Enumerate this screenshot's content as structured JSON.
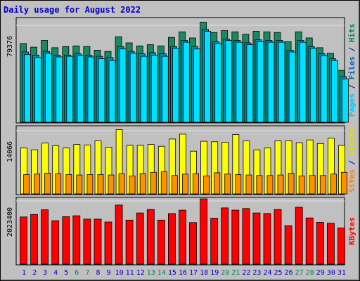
{
  "title": "Daily usage for August 2022",
  "chart_data": [
    {
      "type": "bar",
      "panel": "top",
      "ylim": [
        0,
        79376
      ],
      "y_tick_label": "79376",
      "right_labels": [
        {
          "text": "Pages",
          "color": "#00c8ff"
        },
        {
          "text": " / ",
          "color": "#0000cc"
        },
        {
          "text": "Files",
          "color": "#0060c0"
        },
        {
          "text": " / ",
          "color": "#0000cc"
        },
        {
          "text": "Hits",
          "color": "#00805c"
        }
      ],
      "series": [
        {
          "name": "Hits",
          "color": "#1a8a5e",
          "values": [
            64500,
            61500,
            67000,
            61000,
            62000,
            62500,
            62000,
            59000,
            58000,
            70000,
            65000,
            62500,
            63500,
            62500,
            69500,
            74000,
            69000,
            82000,
            73500,
            75000,
            74000,
            72000,
            74500,
            74000,
            73500,
            66000,
            74000,
            69000,
            61000,
            56500,
            42500
          ]
        },
        {
          "name": "Files",
          "color": "#0090c0",
          "values": [
            57500,
            55000,
            58000,
            55000,
            55000,
            56000,
            55000,
            54000,
            53000,
            62000,
            58000,
            56000,
            57000,
            56000,
            62000,
            67000,
            62000,
            76000,
            66000,
            68000,
            67000,
            65000,
            67500,
            67000,
            67000,
            59000,
            67000,
            62000,
            56000,
            52000,
            37500
          ]
        },
        {
          "name": "Pages",
          "color": "#00e0ff",
          "values": [
            55500,
            53000,
            56500,
            53500,
            54000,
            54500,
            53500,
            52000,
            50500,
            60000,
            56500,
            54000,
            55000,
            54000,
            60500,
            65500,
            60000,
            74500,
            64500,
            67000,
            65500,
            63500,
            66000,
            65500,
            65500,
            57500,
            65500,
            60500,
            54500,
            50500,
            35500
          ]
        }
      ]
    },
    {
      "type": "bar",
      "panel": "middle",
      "ylim": [
        0,
        14066
      ],
      "y_tick_label": "14066",
      "right_labels": [
        {
          "text": "Sites",
          "color": "#ff8000"
        },
        {
          "text": " / ",
          "color": "#0000cc"
        },
        {
          "text": "Visits",
          "color": "#e0e000"
        }
      ],
      "series": [
        {
          "name": "Visits",
          "color": "#ffff00",
          "values": [
            10200,
            9800,
            11300,
            10700,
            10200,
            11000,
            10900,
            11800,
            10400,
            14300,
            10800,
            10800,
            11000,
            10600,
            12200,
            13300,
            9500,
            11700,
            11600,
            11500,
            13200,
            11800,
            9800,
            10200,
            11800,
            11800,
            11400,
            12000,
            11200,
            12400,
            10800
          ]
        },
        {
          "name": "Sites",
          "color": "#ff9000",
          "values": [
            4300,
            4400,
            4600,
            4500,
            4300,
            4200,
            4300,
            4300,
            4200,
            4500,
            4000,
            4500,
            4800,
            4900,
            4100,
            4400,
            4500,
            4000,
            4700,
            4400,
            4300,
            4200,
            4100,
            4100,
            4200,
            4600,
            4000,
            4100,
            4100,
            4400,
            4800
          ]
        }
      ]
    },
    {
      "type": "bar",
      "panel": "bottom",
      "ylim": [
        0,
        2023400
      ],
      "y_tick_label": "2023400",
      "right_labels": [
        {
          "text": "KBytes",
          "color": "#ff0000"
        }
      ],
      "series": [
        {
          "name": "KBytes",
          "color": "#ff0000",
          "values": [
            1510000,
            1590000,
            1740000,
            1390000,
            1520000,
            1550000,
            1440000,
            1440000,
            1350000,
            1890000,
            1410000,
            1640000,
            1750000,
            1410000,
            1620000,
            1730000,
            1330000,
            2090000,
            1470000,
            1800000,
            1730000,
            1780000,
            1640000,
            1620000,
            1750000,
            1230000,
            1820000,
            1480000,
            1340000,
            1310000,
            1160000
          ]
        }
      ]
    }
  ],
  "x_axis": {
    "labels": [
      "1",
      "2",
      "3",
      "4",
      "5",
      "6",
      "7",
      "8",
      "9",
      "10",
      "11",
      "12",
      "13",
      "14",
      "15",
      "16",
      "17",
      "18",
      "19",
      "20",
      "21",
      "22",
      "23",
      "24",
      "25",
      "26",
      "27",
      "28",
      "29",
      "30",
      "31"
    ],
    "weekend_days": [
      6,
      7,
      13,
      14,
      20,
      21,
      27,
      28
    ],
    "weekday_color": "#0000cc",
    "weekend_color": "#008060"
  }
}
